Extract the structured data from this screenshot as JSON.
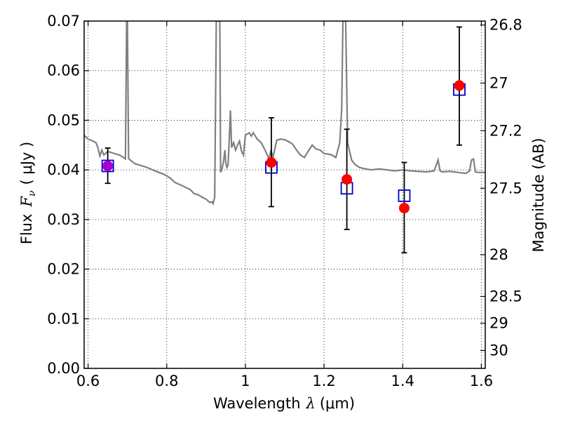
{
  "chart_data": {
    "type": "scatter",
    "xlabel": "Wavelength",
    "xlabel_symbol": "λ",
    "xlabel_unit": "(μm)",
    "ylabel": "Flux",
    "ylabel_symbol": "F",
    "ylabel_subscript": "ν",
    "ylabel_unit": "( μJy )",
    "y2label": "Magnitude (AB)",
    "xlim": [
      0.59,
      1.61
    ],
    "ylim": [
      0.0,
      0.07
    ],
    "grid": true,
    "x_ticks": [
      0.6,
      0.8,
      1.0,
      1.2,
      1.4,
      1.6
    ],
    "x_tick_labels": [
      "0.6",
      "0.8",
      "1",
      "1.2",
      "1.4",
      "1.6"
    ],
    "y_ticks": [
      0.0,
      0.01,
      0.02,
      0.03,
      0.04,
      0.05,
      0.06,
      0.07
    ],
    "y_tick_labels": [
      "0.00",
      "0.01",
      "0.02",
      "0.03",
      "0.04",
      "0.05",
      "0.06",
      "0.07"
    ],
    "y2_ticks": [
      {
        "label": "26.8",
        "flux": 0.0692
      },
      {
        "label": "27",
        "flux": 0.0575
      },
      {
        "label": "27.2",
        "flux": 0.0479
      },
      {
        "label": "27.5",
        "flux": 0.0363
      },
      {
        "label": "28",
        "flux": 0.0229
      },
      {
        "label": "28.5",
        "flux": 0.0145
      },
      {
        "label": "29",
        "flux": 0.0091
      },
      {
        "label": "30",
        "flux": 0.0036
      }
    ],
    "model_spectrum": {
      "color": "#808080",
      "points": [
        [
          0.59,
          0.047
        ],
        [
          0.6,
          0.0462
        ],
        [
          0.61,
          0.0459
        ],
        [
          0.62,
          0.0455
        ],
        [
          0.625,
          0.0445
        ],
        [
          0.63,
          0.0428
        ],
        [
          0.635,
          0.044
        ],
        [
          0.64,
          0.043
        ],
        [
          0.65,
          0.0437
        ],
        [
          0.66,
          0.0435
        ],
        [
          0.67,
          0.0432
        ],
        [
          0.68,
          0.043
        ],
        [
          0.69,
          0.0425
        ],
        [
          0.695,
          0.0422
        ],
        [
          0.698,
          0.07
        ],
        [
          0.7,
          0.07
        ],
        [
          0.703,
          0.0423
        ],
        [
          0.71,
          0.0418
        ],
        [
          0.72,
          0.0412
        ],
        [
          0.73,
          0.041
        ],
        [
          0.75,
          0.0405
        ],
        [
          0.77,
          0.0398
        ],
        [
          0.79,
          0.0392
        ],
        [
          0.8,
          0.0388
        ],
        [
          0.81,
          0.0383
        ],
        [
          0.82,
          0.0375
        ],
        [
          0.84,
          0.0368
        ],
        [
          0.86,
          0.036
        ],
        [
          0.87,
          0.0352
        ],
        [
          0.88,
          0.035
        ],
        [
          0.89,
          0.0345
        ],
        [
          0.9,
          0.0341
        ],
        [
          0.91,
          0.0334
        ],
        [
          0.915,
          0.0336
        ],
        [
          0.918,
          0.0332
        ],
        [
          0.922,
          0.0345
        ],
        [
          0.926,
          0.07
        ],
        [
          0.935,
          0.07
        ],
        [
          0.937,
          0.0395
        ],
        [
          0.94,
          0.04
        ],
        [
          0.945,
          0.042
        ],
        [
          0.948,
          0.044
        ],
        [
          0.95,
          0.0415
        ],
        [
          0.953,
          0.0405
        ],
        [
          0.956,
          0.041
        ],
        [
          0.96,
          0.048
        ],
        [
          0.962,
          0.052
        ],
        [
          0.965,
          0.0445
        ],
        [
          0.97,
          0.0455
        ],
        [
          0.975,
          0.044
        ],
        [
          0.98,
          0.045
        ],
        [
          0.985,
          0.0458
        ],
        [
          0.99,
          0.0438
        ],
        [
          0.995,
          0.043
        ],
        [
          1.0,
          0.047
        ],
        [
          1.01,
          0.0475
        ],
        [
          1.015,
          0.0468
        ],
        [
          1.02,
          0.0475
        ],
        [
          1.03,
          0.0462
        ],
        [
          1.04,
          0.0455
        ],
        [
          1.05,
          0.044
        ],
        [
          1.06,
          0.0422
        ],
        [
          1.065,
          0.044
        ],
        [
          1.07,
          0.0425
        ],
        [
          1.08,
          0.046
        ],
        [
          1.09,
          0.0462
        ],
        [
          1.1,
          0.0461
        ],
        [
          1.11,
          0.0457
        ],
        [
          1.12,
          0.0452
        ],
        [
          1.13,
          0.044
        ],
        [
          1.14,
          0.043
        ],
        [
          1.15,
          0.0425
        ],
        [
          1.16,
          0.0438
        ],
        [
          1.17,
          0.045
        ],
        [
          1.18,
          0.0442
        ],
        [
          1.19,
          0.044
        ],
        [
          1.2,
          0.0433
        ],
        [
          1.21,
          0.0432
        ],
        [
          1.22,
          0.043
        ],
        [
          1.23,
          0.0425
        ],
        [
          1.235,
          0.044
        ],
        [
          1.24,
          0.0455
        ],
        [
          1.245,
          0.0525
        ],
        [
          1.248,
          0.07
        ],
        [
          1.255,
          0.07
        ],
        [
          1.26,
          0.0455
        ],
        [
          1.27,
          0.042
        ],
        [
          1.28,
          0.041
        ],
        [
          1.29,
          0.0405
        ],
        [
          1.3,
          0.0403
        ],
        [
          1.32,
          0.04
        ],
        [
          1.34,
          0.0402
        ],
        [
          1.36,
          0.04
        ],
        [
          1.38,
          0.0398
        ],
        [
          1.4,
          0.04
        ],
        [
          1.42,
          0.0398
        ],
        [
          1.44,
          0.0397
        ],
        [
          1.46,
          0.0396
        ],
        [
          1.48,
          0.0398
        ],
        [
          1.49,
          0.042
        ],
        [
          1.495,
          0.0398
        ],
        [
          1.5,
          0.0396
        ],
        [
          1.52,
          0.0397
        ],
        [
          1.54,
          0.0395
        ],
        [
          1.56,
          0.0393
        ],
        [
          1.57,
          0.0398
        ],
        [
          1.575,
          0.042
        ],
        [
          1.58,
          0.0422
        ],
        [
          1.585,
          0.0396
        ],
        [
          1.59,
          0.0395
        ],
        [
          1.61,
          0.0395
        ]
      ]
    },
    "observed": {
      "color": "#0000cc",
      "marker": "open-square",
      "points": [
        {
          "x": 0.65,
          "y": 0.0408,
          "yerr_lo": 0.0373,
          "yerr_hi": 0.0444
        },
        {
          "x": 1.066,
          "y": 0.0405,
          "yerr_lo": 0.0326,
          "yerr_hi": 0.0505
        },
        {
          "x": 1.258,
          "y": 0.0363,
          "yerr_lo": 0.028,
          "yerr_hi": 0.0482
        },
        {
          "x": 1.404,
          "y": 0.0348,
          "yerr_lo": 0.0233,
          "yerr_hi": 0.0415
        },
        {
          "x": 1.544,
          "y": 0.0562,
          "yerr_lo": 0.045,
          "yerr_hi": 0.0688
        }
      ]
    },
    "model_photometry": {
      "color": "#ff0000",
      "marker": "filled-circle",
      "points": [
        {
          "x": 0.65,
          "y": 0.0408
        },
        {
          "x": 1.066,
          "y": 0.0415
        },
        {
          "x": 1.258,
          "y": 0.0381
        },
        {
          "x": 1.404,
          "y": 0.0323
        },
        {
          "x": 1.544,
          "y": 0.057
        }
      ]
    },
    "first_point_overlap_color": "#aa00cc",
    "errorbar_color": "#000000"
  }
}
